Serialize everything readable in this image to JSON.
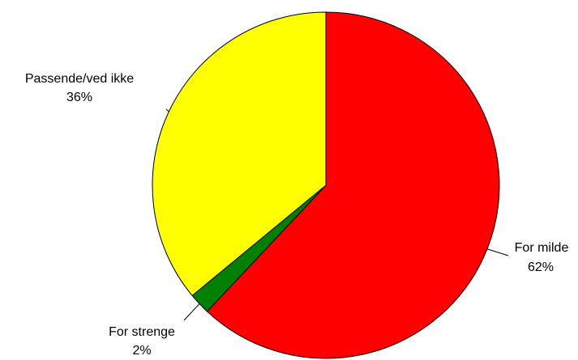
{
  "chart_data": {
    "type": "pie",
    "title": "",
    "start_angle_deg": 0,
    "direction": "clockwise",
    "slices": [
      {
        "label": "For milde",
        "percent_label": "62%",
        "value": 62,
        "color": "#ff0000"
      },
      {
        "label": "For strenge",
        "percent_label": "2%",
        "value": 2,
        "color": "#008000"
      },
      {
        "label": "Passende/ved ikke",
        "percent_label": "36%",
        "value": 36,
        "color": "#ffff00"
      }
    ],
    "legend": "none",
    "labels": "outside-with-leader-lines"
  }
}
